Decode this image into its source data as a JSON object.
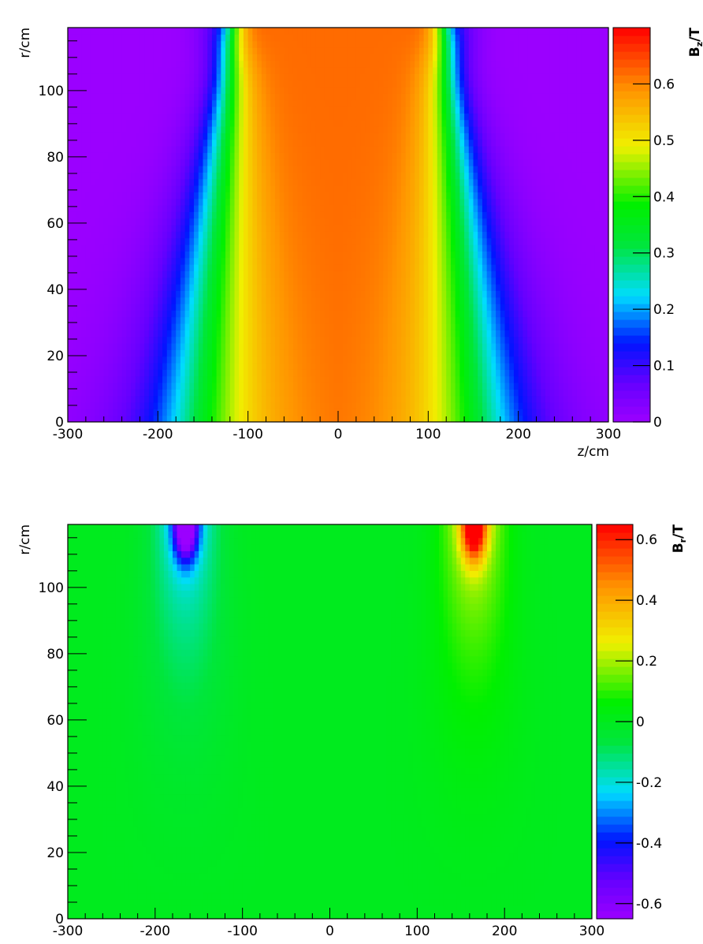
{
  "chart_data": [
    {
      "type": "heatmap",
      "title": "",
      "xlabel": "z/cm",
      "ylabel": "r/cm",
      "zlabel_main": "B",
      "zlabel_sub": "z",
      "zlabel_unit": "/T",
      "xlim": [
        -300,
        300
      ],
      "ylim": [
        0,
        119
      ],
      "zlim": [
        0,
        0.7
      ],
      "x_ticks": [
        -300,
        -200,
        -100,
        0,
        100,
        200,
        300
      ],
      "x_tick_labels": [
        "-300",
        "-200",
        "-100",
        "0",
        "100",
        "200",
        "300"
      ],
      "y_ticks": [
        0,
        20,
        40,
        60,
        80,
        100
      ],
      "y_tick_labels": [
        "0",
        "20",
        "40",
        "60",
        "80",
        "100"
      ],
      "z_ticks": [
        0,
        0.1,
        0.2,
        0.3,
        0.4,
        0.5,
        0.6
      ],
      "z_tick_labels": [
        "0",
        "0.1",
        "0.2",
        "0.3",
        "0.4",
        "0.5",
        "0.6"
      ],
      "colormap": "rainbow",
      "coils_z": [
        -165,
        165
      ],
      "central_value": 0.62,
      "peak_value": 0.7
    },
    {
      "type": "heatmap",
      "title": "",
      "xlabel": "",
      "ylabel": "r/cm",
      "zlabel_main": "B",
      "zlabel_sub": "r",
      "zlabel_unit": "/T",
      "xlim": [
        -300,
        300
      ],
      "ylim": [
        0,
        119
      ],
      "zlim": [
        -0.65,
        0.65
      ],
      "x_ticks": [
        -300,
        -200,
        -100,
        0,
        100,
        200,
        300
      ],
      "x_tick_labels": [
        "-300",
        "-200",
        "-100",
        "0",
        "100",
        "200",
        "300"
      ],
      "y_ticks": [
        0,
        20,
        40,
        60,
        80,
        100
      ],
      "y_tick_labels": [
        "0",
        "20",
        "40",
        "60",
        "80",
        "100"
      ],
      "z_ticks": [
        -0.6,
        -0.4,
        -0.2,
        0,
        0.2,
        0.4,
        0.6
      ],
      "z_tick_labels": [
        "-0.6",
        "-0.4",
        "-0.2",
        "0",
        "0.2",
        "0.4",
        "0.6"
      ],
      "colormap": "rainbow",
      "coils_z": [
        -165,
        165
      ],
      "peak_value": 0.65
    }
  ]
}
